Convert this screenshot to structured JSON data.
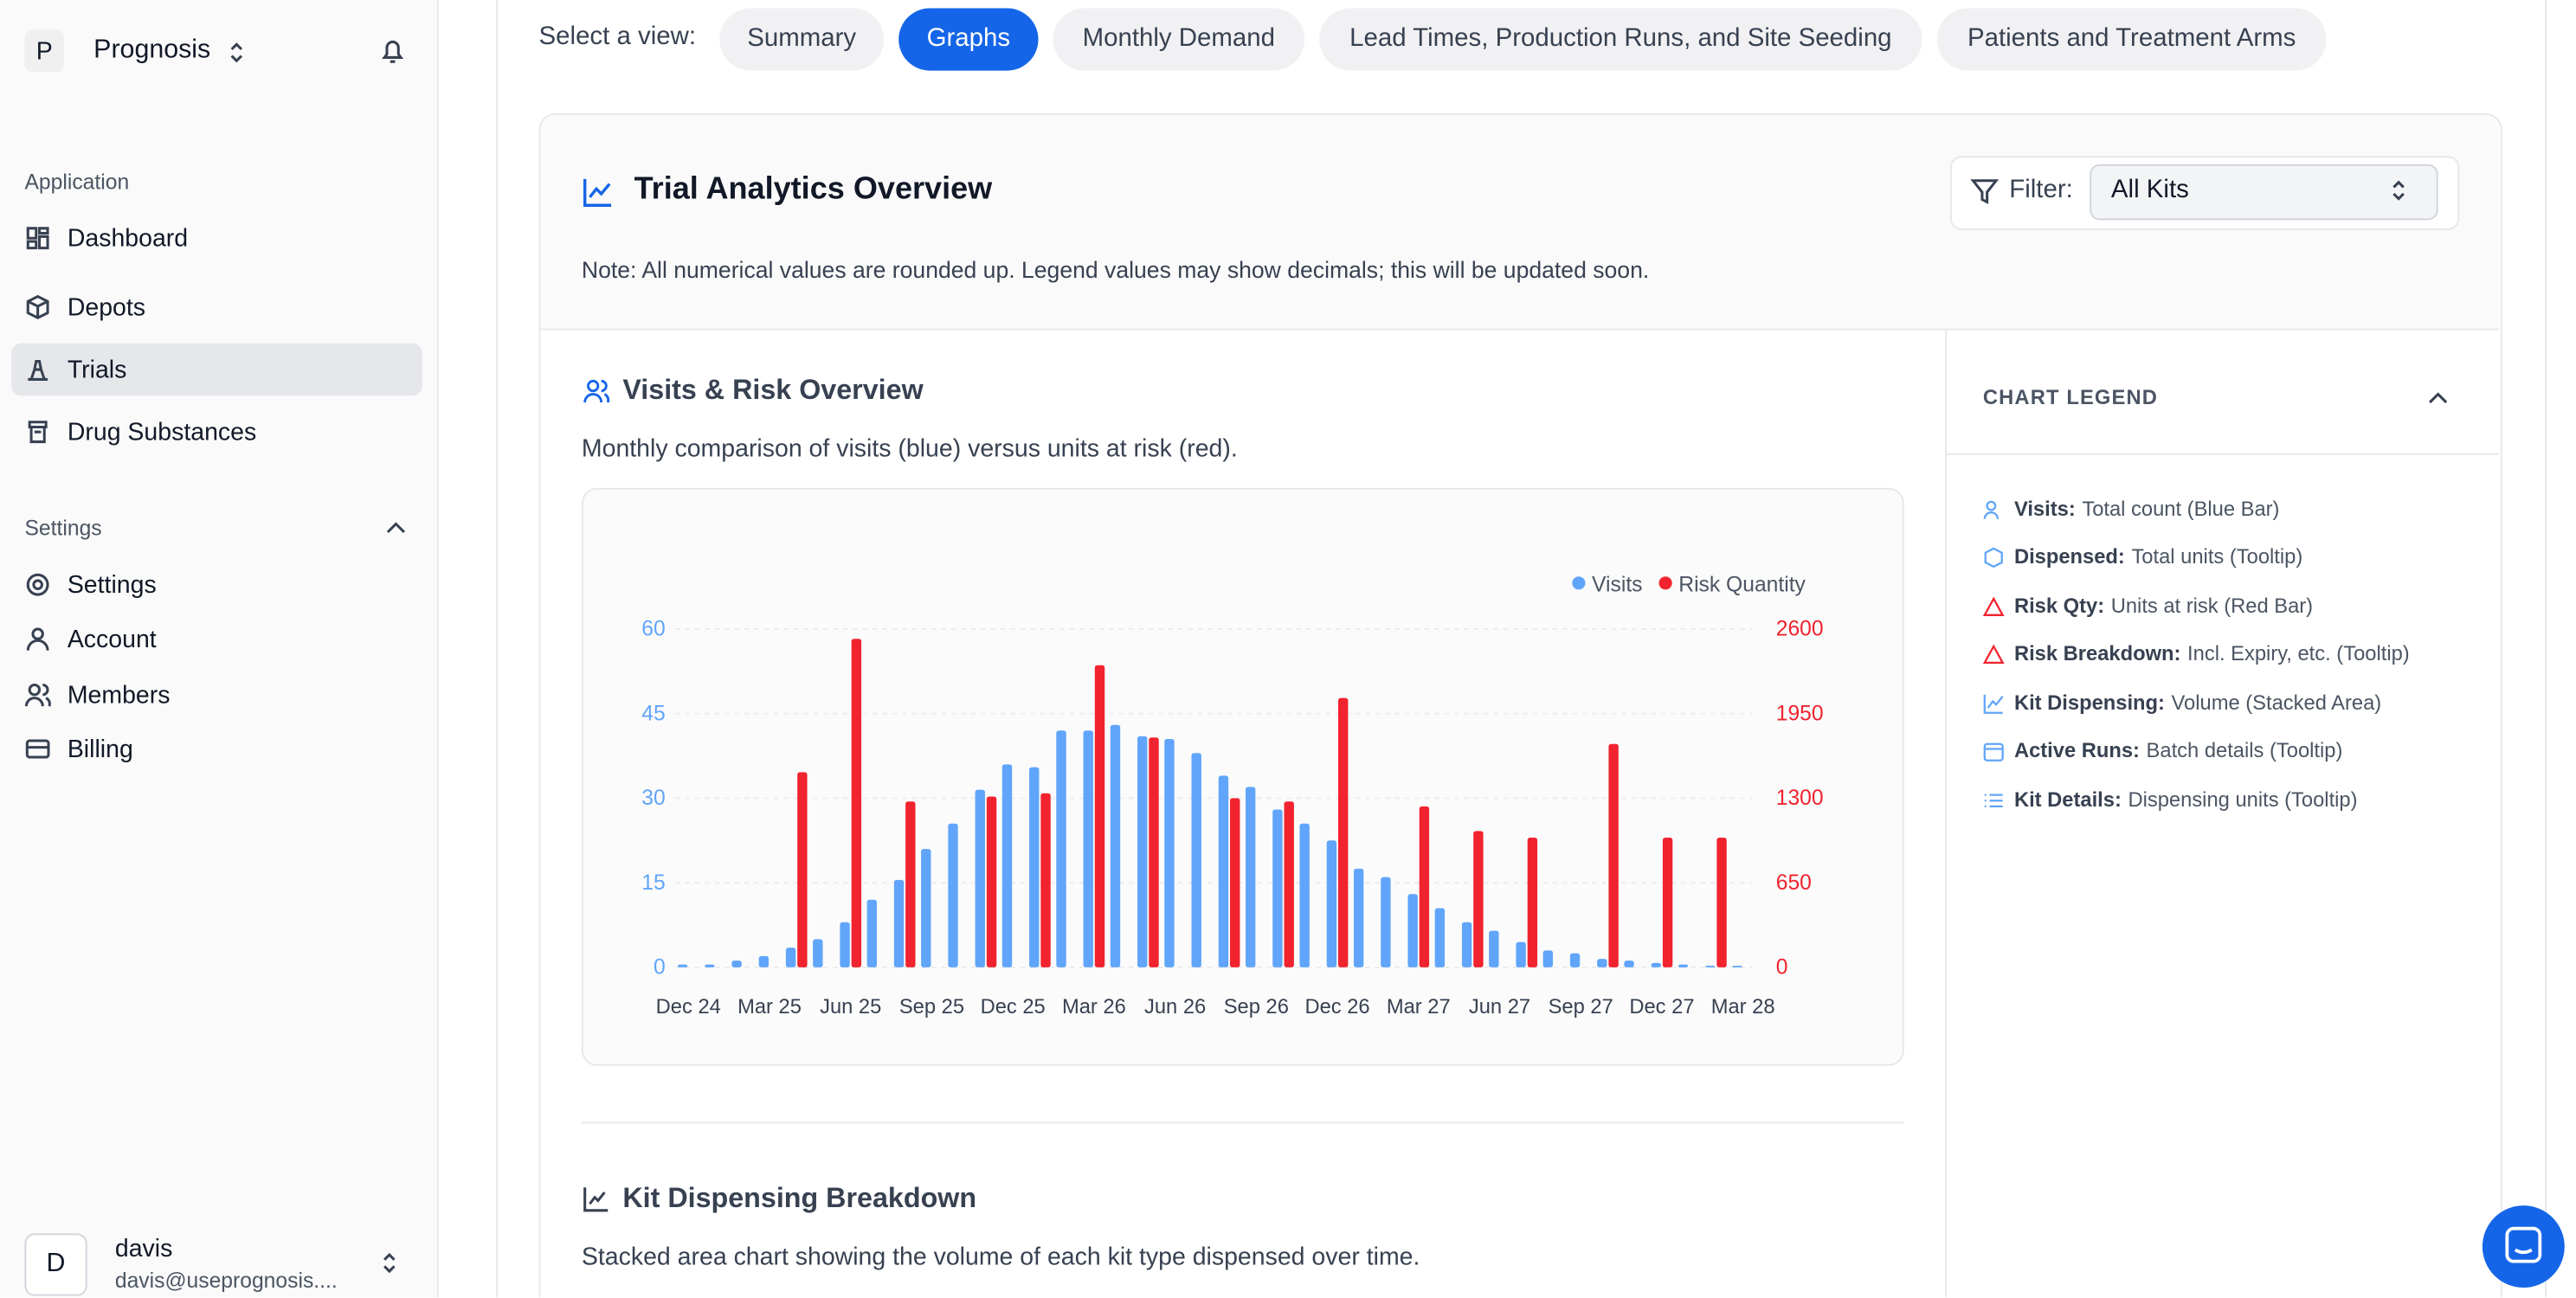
{
  "sidebar": {
    "org_initial": "P",
    "org": "Prognosis",
    "sections": [
      {
        "title": "Application",
        "items": [
          "Dashboard",
          "Depots",
          "Trials",
          "Drug Substances"
        ]
      },
      {
        "title": "Settings",
        "items": [
          "Settings",
          "Account",
          "Members",
          "Billing"
        ]
      }
    ],
    "user": {
      "initial": "D",
      "name": "davis",
      "email": "davis@useprognosis...."
    }
  },
  "tabs": {
    "label": "Select a view:",
    "items": [
      "Summary",
      "Graphs",
      "Monthly Demand",
      "Lead Times, Production Runs, and Site Seeding",
      "Patients and Treatment Arms"
    ]
  },
  "panel": {
    "title": "Trial Analytics Overview",
    "filter_label": "Filter:",
    "filter_value": "All Kits",
    "note": "Note: All numerical values are rounded up. Legend values may show decimals; this will be updated soon."
  },
  "legend_panel": {
    "title": "CHART LEGEND",
    "items": [
      {
        "term": "Visits:",
        "desc": "Total count (Blue Bar)"
      },
      {
        "term": "Dispensed:",
        "desc": "Total units (Tooltip)"
      },
      {
        "term": "Risk Qty:",
        "desc": "Units at risk (Red Bar)"
      },
      {
        "term": "Risk Breakdown:",
        "desc": "Incl. Expiry, etc. (Tooltip)"
      },
      {
        "term": "Kit Dispensing:",
        "desc": "Volume (Stacked Area)"
      },
      {
        "term": "Active Runs:",
        "desc": "Batch details (Tooltip)"
      },
      {
        "term": "Kit Details:",
        "desc": "Dispensing units (Tooltip)"
      }
    ]
  },
  "section2": {
    "title": "Kit Dispensing Breakdown",
    "subtitle": "Stacked area chart showing the volume of each kit type dispensed over time."
  },
  "chart_data": {
    "type": "bar",
    "title": "Visits & Risk Overview",
    "subtitle": "Monthly comparison of visits (blue) versus units at risk (red).",
    "categories": [
      "Dec 24",
      null,
      null,
      "Mar 25",
      null,
      null,
      "Jun 25",
      null,
      null,
      "Sep 25",
      null,
      null,
      "Dec 25",
      null,
      null,
      "Mar 26",
      null,
      null,
      "Jun 26",
      null,
      null,
      "Sep 26",
      null,
      null,
      "Dec 26",
      null,
      null,
      "Mar 27",
      null,
      null,
      "Jun 27",
      null,
      null,
      "Sep 27",
      null,
      null,
      "Dec 27",
      null,
      null,
      "Mar 28"
    ],
    "series": [
      {
        "name": "Visits",
        "color": "#60a5fa",
        "values": [
          0.5,
          0.5,
          1.2,
          2,
          3.5,
          5,
          8,
          12,
          15.5,
          21,
          25.5,
          31.5,
          36,
          35.5,
          42,
          42,
          43,
          41,
          40.5,
          38,
          34,
          32,
          28,
          25.5,
          22.5,
          17.5,
          16,
          13,
          10.5,
          8,
          6.5,
          4.5,
          3,
          2.5,
          1.5,
          1.2,
          0.8,
          0.5,
          0.3,
          0.3
        ]
      },
      {
        "name": "Risk Quantity",
        "color": "#f0232e",
        "axis": "y2",
        "values": [
          0,
          0,
          0,
          0,
          1500,
          0,
          2525,
          0,
          1275,
          0,
          0,
          1313,
          0,
          1338,
          0,
          2322,
          0,
          1767,
          0,
          0,
          1300,
          0,
          1275,
          0,
          2070,
          0,
          0,
          1237,
          0,
          1048,
          0,
          997,
          0,
          0,
          1717,
          0,
          997,
          0,
          997,
          0
        ]
      }
    ],
    "ylim": [
      0,
      60
    ],
    "yticks": [
      0,
      15,
      30,
      45,
      60
    ],
    "y2lim": [
      0,
      2600
    ],
    "y2ticks": [
      0,
      650,
      1300,
      1950,
      2600
    ],
    "grid": true,
    "legend": "top-right"
  }
}
